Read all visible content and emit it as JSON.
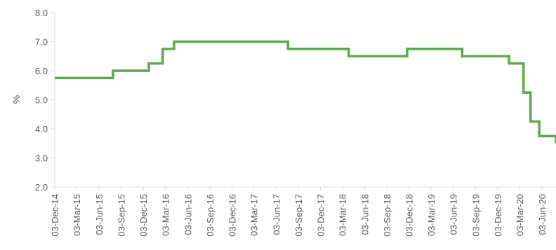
{
  "chart_data": {
    "type": "line",
    "title": "",
    "xlabel": "",
    "ylabel": "%",
    "ylim": [
      2.0,
      8.0
    ],
    "y_ticks": [
      "2.0",
      "3.0",
      "4.0",
      "5.0",
      "6.0",
      "7.0",
      "8.0"
    ],
    "x_ticks": [
      "03-Dec-14",
      "03-Mar-15",
      "03-Jun-15",
      "03-Sep-15",
      "03-Dec-15",
      "03-Mar-16",
      "03-Jun-16",
      "03-Sep-16",
      "03-Dec-16",
      "03-Mar-17",
      "03-Jun-17",
      "03-Sep-17",
      "03-Dec-17",
      "03-Mar-18",
      "03-Jun-18",
      "03-Sep-18",
      "03-Dec-18",
      "03-Mar-19",
      "03-Jun-19",
      "03-Sep-19",
      "03-Dec-19",
      "03-Mar-20",
      "03-Jun-20"
    ],
    "x_range": [
      "2014-12-03",
      "2020-07-31"
    ],
    "grid": false,
    "line_color": "#5ea84b",
    "axis_color": "#d9d9d9",
    "series": [
      {
        "step": true,
        "points": [
          {
            "x": "2014-12-03",
            "y": 5.75
          },
          {
            "x": "2015-07-31",
            "y": 6.0
          },
          {
            "x": "2015-12-26",
            "y": 6.25
          },
          {
            "x": "2016-02-21",
            "y": 6.75
          },
          {
            "x": "2016-04-08",
            "y": 7.0
          },
          {
            "x": "2017-07-22",
            "y": 6.75
          },
          {
            "x": "2018-03-29",
            "y": 6.5
          },
          {
            "x": "2018-11-25",
            "y": 6.75
          },
          {
            "x": "2019-07-10",
            "y": 6.5
          },
          {
            "x": "2020-01-19",
            "y": 6.25
          },
          {
            "x": "2020-03-19",
            "y": 5.25
          },
          {
            "x": "2020-04-17",
            "y": 4.25
          },
          {
            "x": "2020-05-23",
            "y": 3.75
          },
          {
            "x": "2020-07-31",
            "y": 3.5
          }
        ]
      }
    ]
  }
}
